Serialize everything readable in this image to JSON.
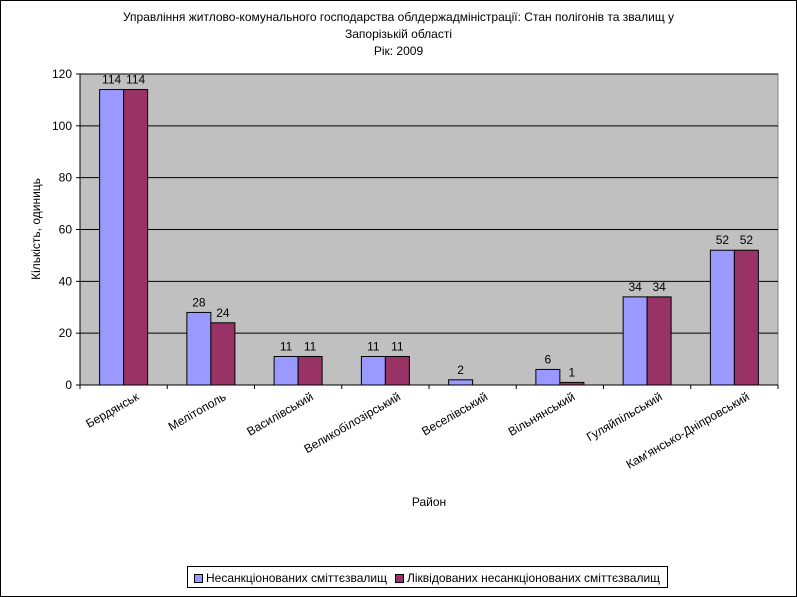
{
  "chart_data": {
    "type": "bar",
    "title_lines": [
      "Управління житлово-комунального господарства облдержадміністрації: Стан полігонів та звалищ у",
      "Запорізькій області",
      "Рік: 2009"
    ],
    "xlabel": "Район",
    "ylabel": "Кількість, одиниць",
    "ylim": [
      0,
      120
    ],
    "yticks": [
      0,
      20,
      40,
      60,
      80,
      100,
      120
    ],
    "categories": [
      "Бердянськ",
      "Мелітополь",
      "Василівський",
      "Великобілозірський",
      "Веселівський",
      "Вільнянський",
      "Гуляйпільський",
      "Кам'янсько-Дніпровський"
    ],
    "series": [
      {
        "name": "Несанкціонованих сміттєзвалищ",
        "color": "#9999ff",
        "values": [
          114,
          28,
          11,
          11,
          2,
          6,
          34,
          52
        ]
      },
      {
        "name": "Ліквідованих несанкціонованих сміттєзвалищ",
        "color": "#993366",
        "values": [
          114,
          24,
          11,
          11,
          null,
          1,
          34,
          52
        ]
      }
    ],
    "plot_background": "#c0c0c0",
    "grid": true,
    "legend_position": "bottom"
  }
}
